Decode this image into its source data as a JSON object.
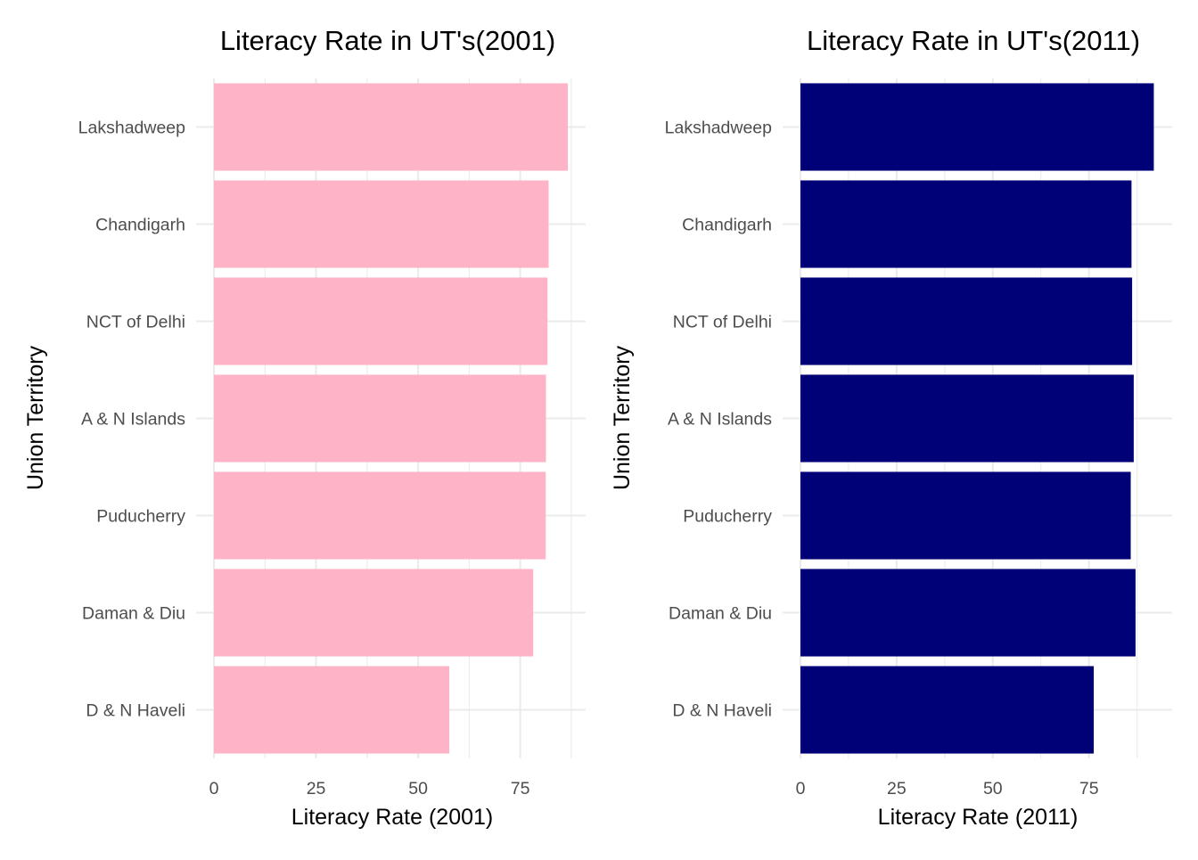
{
  "chart_data": [
    {
      "type": "bar",
      "orientation": "horizontal",
      "title": "Literacy Rate in UT's(2001)",
      "xlabel": "Literacy Rate (2001)",
      "ylabel": "Union Territory",
      "categories": [
        "Lakshadweep",
        "Chandigarh",
        "NCT of Delhi",
        "A & N Islands",
        "Puducherry",
        "Daman & Diu",
        "D & N Haveli"
      ],
      "values": [
        86.66,
        81.94,
        81.67,
        81.3,
        81.24,
        78.18,
        57.63
      ],
      "xlim": [
        0,
        90
      ],
      "xticks": [
        "0",
        "25",
        "50",
        "75"
      ],
      "grid": true,
      "color": "#FFB3C6"
    },
    {
      "type": "bar",
      "orientation": "horizontal",
      "title": "Literacy Rate in UT's(2011)",
      "xlabel": "Literacy Rate (2011)",
      "ylabel": "Union Territory",
      "categories": [
        "Lakshadweep",
        "Chandigarh",
        "NCT of Delhi",
        "A & N Islands",
        "Puducherry",
        "Daman & Diu",
        "D & N Haveli"
      ],
      "values": [
        91.85,
        86.05,
        86.21,
        86.63,
        85.85,
        87.1,
        76.24
      ],
      "xlim": [
        0,
        96
      ],
      "xticks": [
        "0",
        "25",
        "50",
        "75"
      ],
      "grid": true,
      "color": "#000077"
    }
  ]
}
